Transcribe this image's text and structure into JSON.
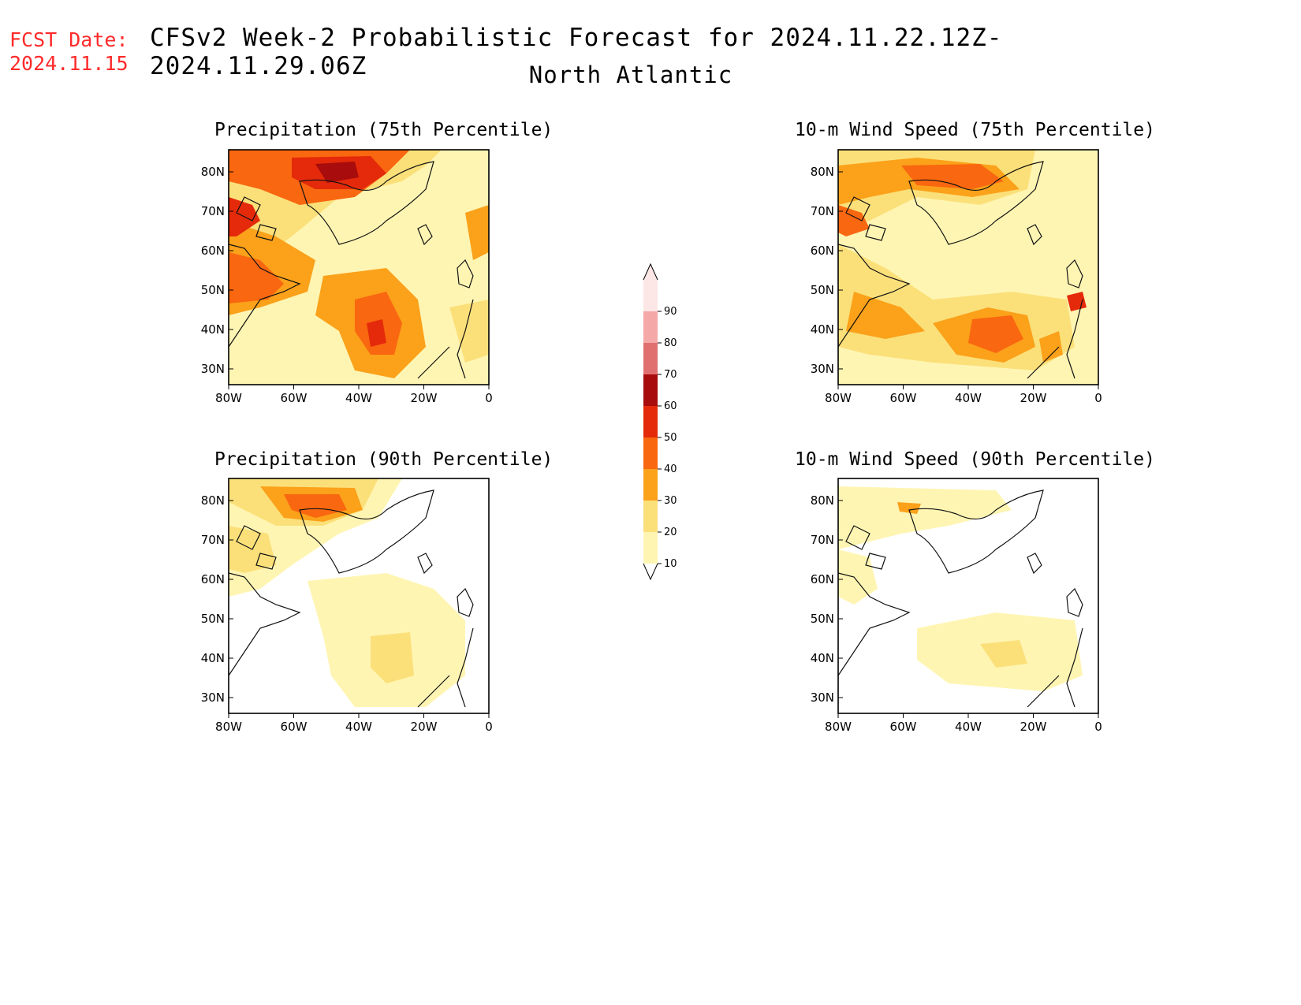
{
  "header": {
    "fcst_label": "FCST Date:",
    "fcst_date": "2024.11.15",
    "title": "CFSv2 Week-2 Probabilistic Forecast for 2024.11.22.12Z-2024.11.29.06Z",
    "subtitle": "North Atlantic"
  },
  "axes": {
    "lat_labels": [
      "80N",
      "70N",
      "60N",
      "50N",
      "40N",
      "30N"
    ],
    "lon_labels": [
      "80W",
      "60W",
      "40W",
      "20W",
      "0"
    ]
  },
  "panels": [
    {
      "title": "Precipitation (75th Percentile)"
    },
    {
      "title": "10-m Wind Speed (75th Percentile)"
    },
    {
      "title": "Precipitation (90th Percentile)"
    },
    {
      "title": "10-m Wind Speed (90th Percentile)"
    }
  ],
  "colorbar": {
    "levels": [
      "10",
      "20",
      "30",
      "40",
      "50",
      "60",
      "70",
      "80",
      "90"
    ],
    "colors": [
      "#fff5b3",
      "#fbe07a",
      "#fba11a",
      "#f96710",
      "#e42a0a",
      "#a80c0c",
      "#e07070",
      "#f5a8a8",
      "#fde6e6"
    ]
  }
}
